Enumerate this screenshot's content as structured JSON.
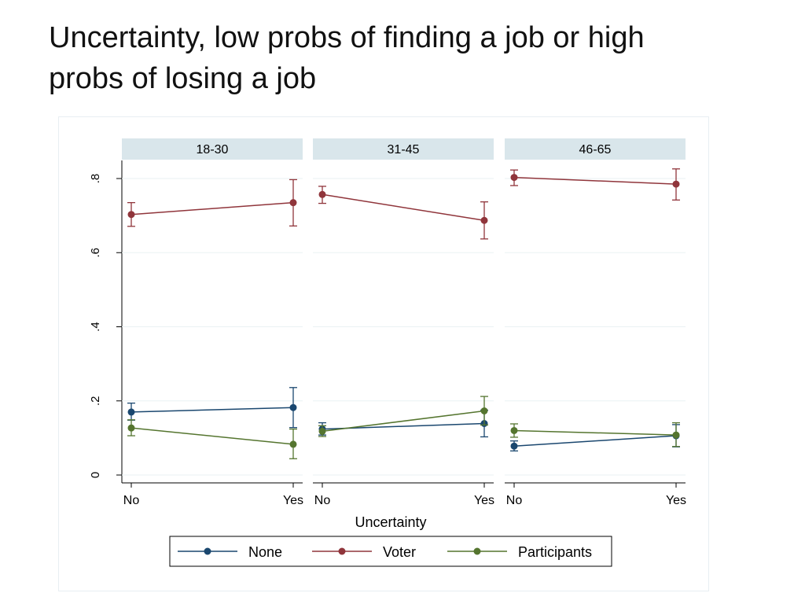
{
  "slide": {
    "title_line1": "Uncertainty, low probs of finding a job or high",
    "title_line2": "probs of losing a job"
  },
  "chart_data": {
    "type": "line",
    "panels": [
      "18-30",
      "31-45",
      "46-65"
    ],
    "categories": [
      "No",
      "Yes"
    ],
    "xlabel": "Uncertainty",
    "ylabel": "",
    "ylim": [
      0,
      0.85
    ],
    "yticks": [
      0,
      0.2,
      0.4,
      0.6,
      0.8
    ],
    "ytick_labels": [
      "0",
      ".2",
      ".4",
      ".6",
      ".8"
    ],
    "grid": true,
    "legend_position": "bottom",
    "series": [
      {
        "name": "None",
        "color": "#1a476f",
        "panels": [
          {
            "values": [
              0.17,
              0.182
            ],
            "ci": [
              [
                0.148,
                0.194
              ],
              [
                0.128,
                0.236
              ]
            ]
          },
          {
            "values": [
              0.124,
              0.139
            ],
            "ci": [
              [
                0.108,
                0.141
              ],
              [
                0.103,
                0.175
              ]
            ]
          },
          {
            "values": [
              0.078,
              0.106
            ],
            "ci": [
              [
                0.065,
                0.092
              ],
              [
                0.076,
                0.136
              ]
            ]
          }
        ]
      },
      {
        "name": "Voter",
        "color": "#90353b",
        "panels": [
          {
            "values": [
              0.703,
              0.735
            ],
            "ci": [
              [
                0.671,
                0.735
              ],
              [
                0.672,
                0.797
              ]
            ]
          },
          {
            "values": [
              0.757,
              0.687
            ],
            "ci": [
              [
                0.733,
                0.779
              ],
              [
                0.637,
                0.737
              ]
            ]
          },
          {
            "values": [
              0.803,
              0.785
            ],
            "ci": [
              [
                0.781,
                0.823
              ],
              [
                0.742,
                0.826
              ]
            ]
          }
        ]
      },
      {
        "name": "Participants",
        "color": "#55752f",
        "panels": [
          {
            "values": [
              0.127,
              0.083
            ],
            "ci": [
              [
                0.106,
                0.149
              ],
              [
                0.044,
                0.124
              ]
            ]
          },
          {
            "values": [
              0.118,
              0.173
            ],
            "ci": [
              [
                0.104,
                0.133
              ],
              [
                0.135,
                0.212
              ]
            ]
          },
          {
            "values": [
              0.12,
              0.108
            ],
            "ci": [
              [
                0.102,
                0.138
              ],
              [
                0.077,
                0.141
              ]
            ]
          }
        ]
      }
    ]
  }
}
